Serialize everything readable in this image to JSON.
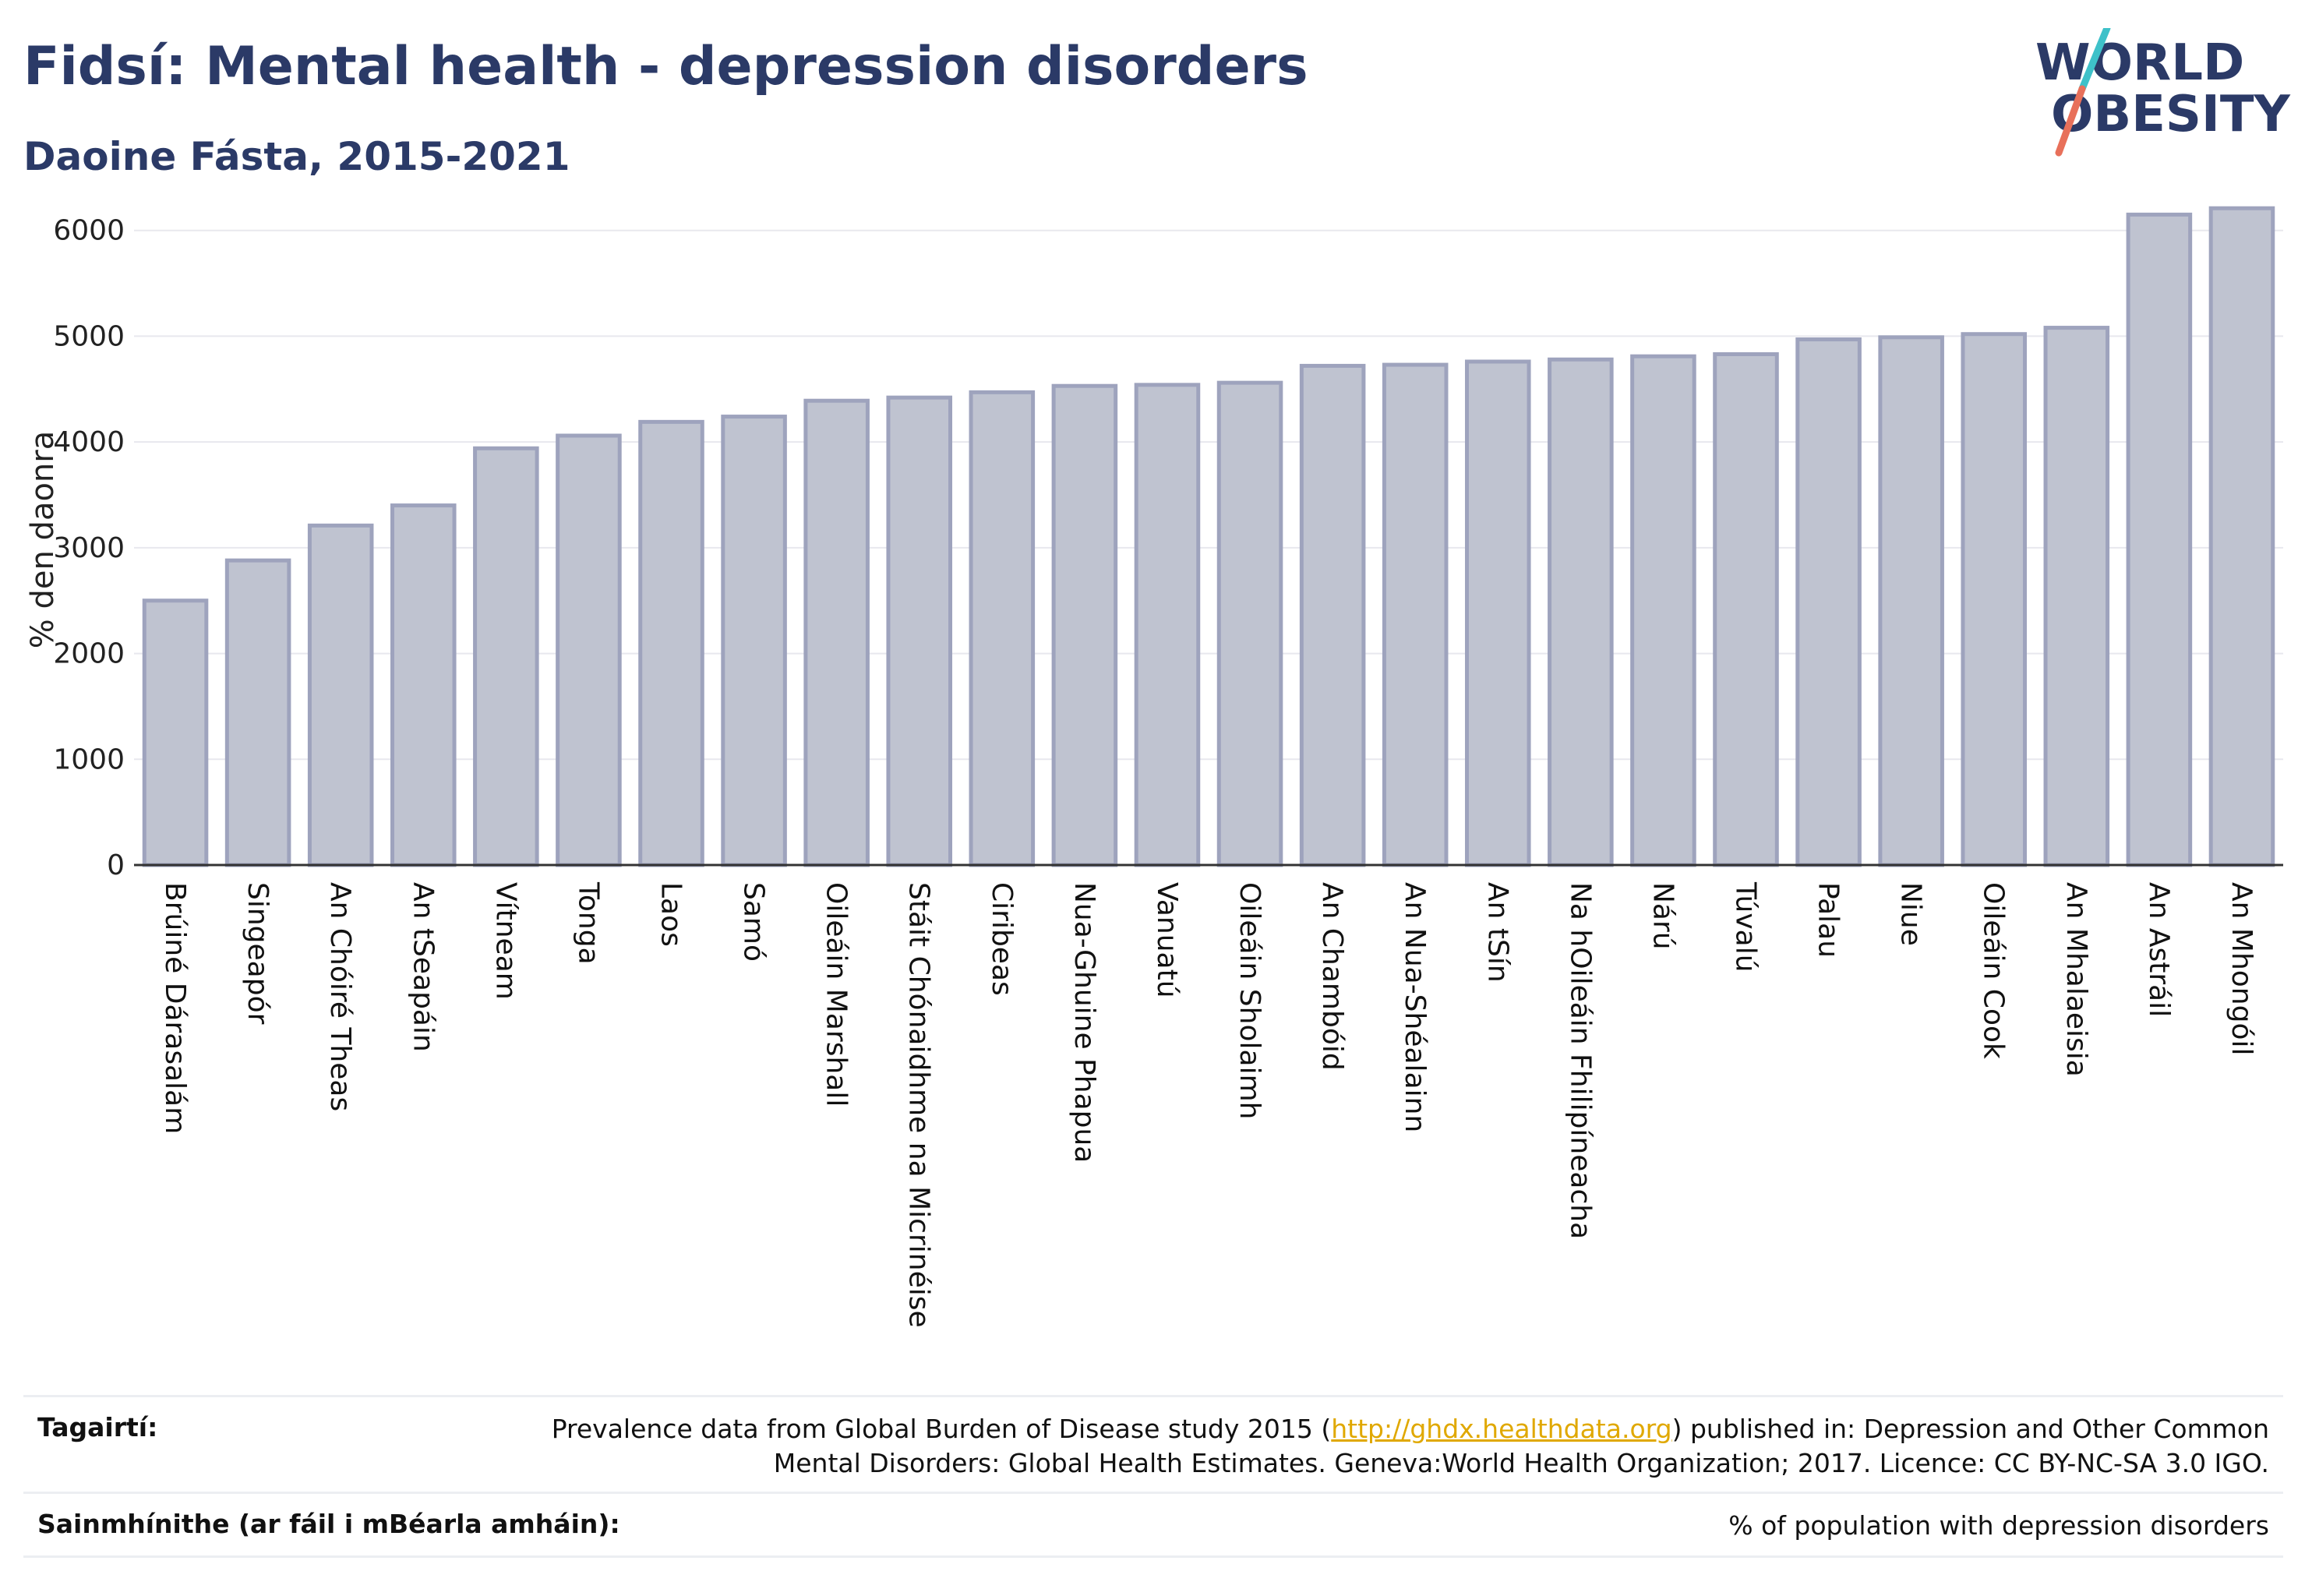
{
  "header": {
    "title": "Fidsí: Mental health - depression disorders",
    "subtitle": "Daoine Fásta, 2015-2021"
  },
  "logo": {
    "line1": "WORLD",
    "line2": "OBESITY",
    "colors": {
      "text": "#2b3a67",
      "slash_teal": "#3ec1c9",
      "slash_coral": "#e8705a"
    }
  },
  "colors": {
    "bar_fill": "#bfc3d0",
    "bar_stroke": "#9ea3bd",
    "axis": "#333333",
    "grid": "#e8e8ee"
  },
  "chart_data": {
    "type": "bar",
    "ylabel": "% den daonra",
    "xlabel": "",
    "ylim": [
      0,
      6300
    ],
    "yticks": [
      0,
      1000,
      2000,
      3000,
      4000,
      5000,
      6000
    ],
    "grid": true,
    "categories": [
      "Brúiné Dárasalám",
      "Singeapór",
      "An Chóiré Theas",
      "An tSeapáin",
      "Vítneam",
      "Tonga",
      "Laos",
      "Samó",
      "Oileáin Marshall",
      "Stáit Chónaidhme na Micrinéise",
      "Ciribeas",
      "Nua-Ghuine Phapua",
      "Vanuatú",
      "Oileáin Sholaimh",
      "An Chambóid",
      "An Nua-Shéalainn",
      "An tSín",
      "Na hOileáin Fhilipíneacha",
      "Nárú",
      "Túvalú",
      "Palau",
      "Niue",
      "Oileáin Cook",
      "An Mhalaeisia",
      "An Astráil",
      "An Mhongóil"
    ],
    "values": [
      2500,
      2880,
      3210,
      3400,
      3940,
      4060,
      4190,
      4240,
      4390,
      4420,
      4470,
      4530,
      4540,
      4560,
      4720,
      4730,
      4760,
      4780,
      4810,
      4830,
      4970,
      4990,
      5020,
      5080,
      6150,
      6210
    ]
  },
  "footer": {
    "references_label": "Tagairtí:",
    "references_before": "Prevalence data from Global Burden of Disease study 2015 (",
    "references_link": "http://ghdx.healthdata.org",
    "references_after": ") published in: Depression and Other Common",
    "references_line2": "Mental Disorders: Global Health Estimates. Geneva:World Health Organization; 2017. Licence: CC BY-NC-SA 3.0 IGO.",
    "definitions_label": "Sainmhínithe (ar fáil i mBéarla amháin):",
    "definitions_text": "% of population with depression disorders"
  }
}
